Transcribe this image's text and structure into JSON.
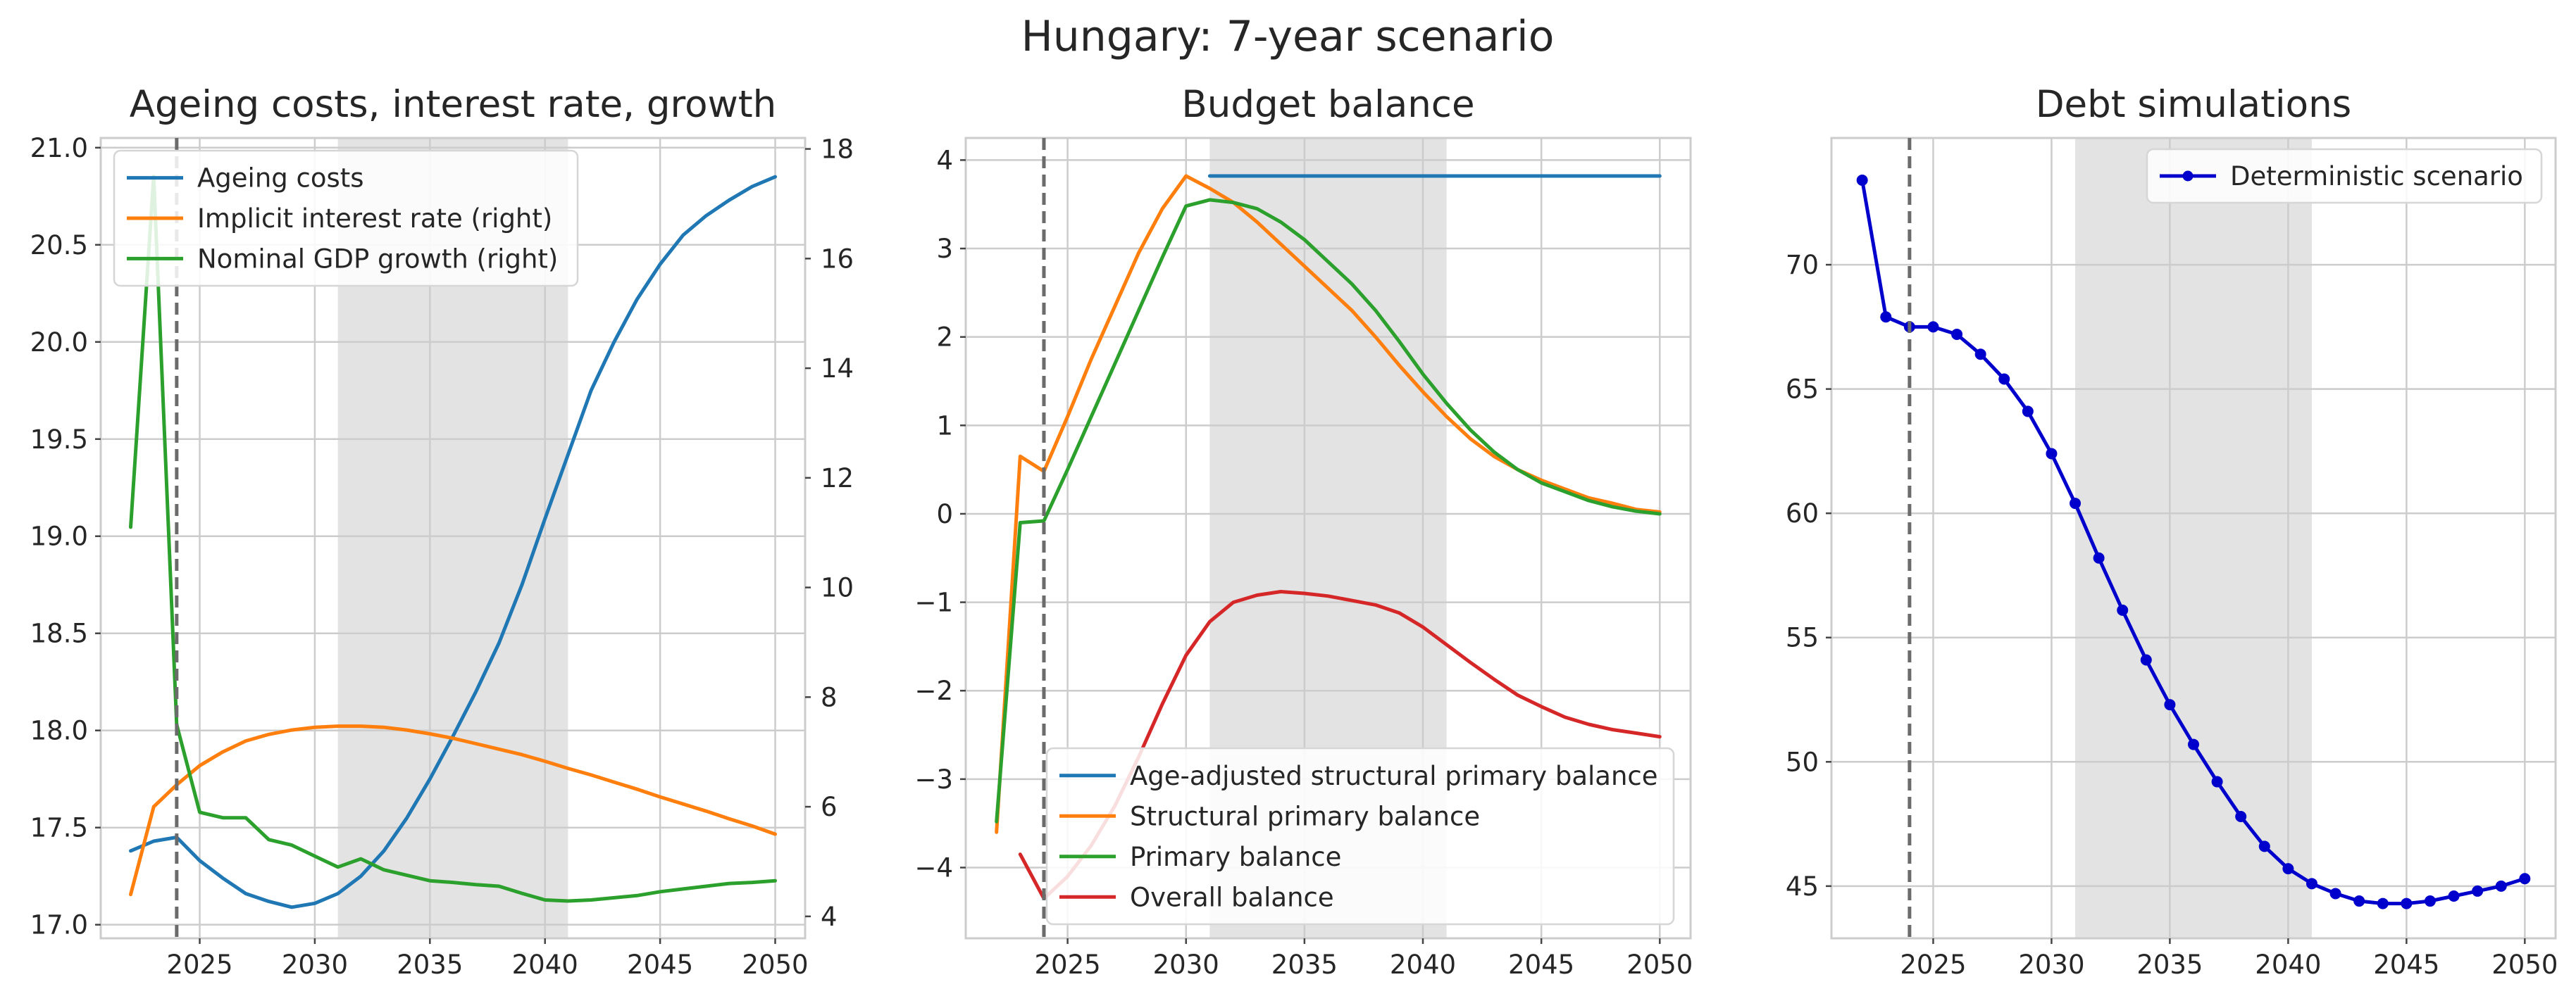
{
  "suptitle": "Hungary: 7-year scenario",
  "chart_data": [
    {
      "type": "line",
      "title": "Ageing costs, interest rate, growth",
      "xlim": [
        2020.7,
        2051.3
      ],
      "xticks": [
        2025,
        2030,
        2035,
        2040,
        2045,
        2050
      ],
      "ylim": [
        16.93,
        21.05
      ],
      "yticks": [
        17.0,
        17.5,
        18.0,
        18.5,
        19.0,
        19.5,
        20.0,
        20.5,
        21.0
      ],
      "ytick_labels": [
        "17.0",
        "17.5",
        "18.0",
        "18.5",
        "19.0",
        "19.5",
        "20.0",
        "20.5",
        "21.0"
      ],
      "y2lim": [
        3.6,
        18.2
      ],
      "y2ticks": [
        4,
        6,
        8,
        10,
        12,
        14,
        16,
        18
      ],
      "ytick2_labels": [
        "4",
        "6",
        "8",
        "10",
        "12",
        "14",
        "16",
        "18"
      ],
      "shaded_x": [
        2031,
        2041
      ],
      "vline_x": 2024,
      "legend_position": "upper left",
      "grid": true,
      "series": [
        {
          "name": "Ageing costs",
          "axis": "left",
          "color": "#1f77b4",
          "x": [
            2022,
            2023,
            2024,
            2025,
            2026,
            2027,
            2028,
            2029,
            2030,
            2031,
            2032,
            2033,
            2034,
            2035,
            2036,
            2037,
            2038,
            2039,
            2040,
            2041,
            2042,
            2043,
            2044,
            2045,
            2046,
            2047,
            2048,
            2049,
            2050
          ],
          "values": [
            17.38,
            17.43,
            17.45,
            17.33,
            17.24,
            17.16,
            17.12,
            17.09,
            17.11,
            17.16,
            17.25,
            17.38,
            17.55,
            17.75,
            17.97,
            18.2,
            18.45,
            18.75,
            19.09,
            19.42,
            19.75,
            20.0,
            20.22,
            20.4,
            20.55,
            20.65,
            20.73,
            20.8,
            20.85
          ]
        },
        {
          "name": "Implicit interest rate (right)",
          "axis": "right",
          "color": "#ff7f0e",
          "x": [
            2022,
            2023,
            2024,
            2025,
            2026,
            2027,
            2028,
            2029,
            2030,
            2031,
            2032,
            2033,
            2034,
            2035,
            2036,
            2037,
            2038,
            2039,
            2040,
            2041,
            2042,
            2043,
            2044,
            2045,
            2046,
            2047,
            2048,
            2049,
            2050
          ],
          "values": [
            4.4,
            6.0,
            6.4,
            6.75,
            7.0,
            7.2,
            7.32,
            7.4,
            7.45,
            7.47,
            7.47,
            7.45,
            7.4,
            7.33,
            7.25,
            7.15,
            7.05,
            6.95,
            6.83,
            6.7,
            6.58,
            6.45,
            6.32,
            6.18,
            6.05,
            5.92,
            5.78,
            5.65,
            5.5
          ]
        },
        {
          "name": "Nominal GDP growth (right)",
          "axis": "right",
          "color": "#2ca02c",
          "x": [
            2022,
            2023,
            2024,
            2025,
            2026,
            2027,
            2028,
            2029,
            2030,
            2031,
            2032,
            2033,
            2034,
            2035,
            2036,
            2037,
            2038,
            2039,
            2040,
            2041,
            2042,
            2043,
            2044,
            2045,
            2046,
            2047,
            2048,
            2049,
            2050
          ],
          "values": [
            11.1,
            17.5,
            7.5,
            5.9,
            5.8,
            5.8,
            5.4,
            5.3,
            5.1,
            4.9,
            5.05,
            4.85,
            4.75,
            4.65,
            4.62,
            4.58,
            4.55,
            4.42,
            4.3,
            4.28,
            4.3,
            4.34,
            4.38,
            4.45,
            4.5,
            4.55,
            4.6,
            4.62,
            4.65
          ]
        }
      ]
    },
    {
      "type": "line",
      "title": "Budget balance",
      "xlim": [
        2020.7,
        2051.3
      ],
      "xticks": [
        2025,
        2030,
        2035,
        2040,
        2045,
        2050
      ],
      "ylim": [
        -4.8,
        4.25
      ],
      "yticks": [
        -4,
        -3,
        -2,
        -1,
        0,
        1,
        2,
        3,
        4
      ],
      "ytick_labels": [
        "−4",
        "−3",
        "−2",
        "−1",
        "0",
        "1",
        "2",
        "3",
        "4"
      ],
      "shaded_x": [
        2031,
        2041
      ],
      "vline_x": 2024,
      "legend_position": "lower right",
      "grid": true,
      "series": [
        {
          "name": "Age-adjusted structural primary balance",
          "color": "#1f77b4",
          "x": [
            2031,
            2032,
            2033,
            2034,
            2035,
            2036,
            2037,
            2038,
            2039,
            2040,
            2041,
            2042,
            2043,
            2044,
            2045,
            2046,
            2047,
            2048,
            2049,
            2050
          ],
          "values": [
            3.82,
            3.82,
            3.82,
            3.82,
            3.82,
            3.82,
            3.82,
            3.82,
            3.82,
            3.82,
            3.82,
            3.82,
            3.82,
            3.82,
            3.82,
            3.82,
            3.82,
            3.82,
            3.82,
            3.82
          ]
        },
        {
          "name": "Structural primary balance",
          "color": "#ff7f0e",
          "x": [
            2022,
            2023,
            2024,
            2025,
            2026,
            2027,
            2028,
            2029,
            2030,
            2031,
            2032,
            2033,
            2034,
            2035,
            2036,
            2037,
            2038,
            2039,
            2040,
            2041,
            2042,
            2043,
            2044,
            2045,
            2046,
            2047,
            2048,
            2049,
            2050
          ],
          "values": [
            -3.6,
            0.65,
            0.48,
            1.1,
            1.75,
            2.35,
            2.95,
            3.45,
            3.82,
            3.68,
            3.52,
            3.3,
            3.05,
            2.8,
            2.55,
            2.3,
            2.0,
            1.68,
            1.38,
            1.1,
            0.85,
            0.65,
            0.5,
            0.38,
            0.28,
            0.18,
            0.12,
            0.05,
            0.02
          ]
        },
        {
          "name": "Primary balance",
          "color": "#2ca02c",
          "x": [
            2022,
            2023,
            2024,
            2025,
            2026,
            2027,
            2028,
            2029,
            2030,
            2031,
            2032,
            2033,
            2034,
            2035,
            2036,
            2037,
            2038,
            2039,
            2040,
            2041,
            2042,
            2043,
            2044,
            2045,
            2046,
            2047,
            2048,
            2049,
            2050
          ],
          "values": [
            -3.48,
            -0.1,
            -0.08,
            0.5,
            1.1,
            1.7,
            2.3,
            2.9,
            3.48,
            3.55,
            3.52,
            3.45,
            3.3,
            3.1,
            2.85,
            2.6,
            2.3,
            1.95,
            1.58,
            1.25,
            0.95,
            0.7,
            0.5,
            0.35,
            0.25,
            0.15,
            0.08,
            0.03,
            0.0
          ]
        },
        {
          "name": "Overall balance",
          "color": "#d62728",
          "x": [
            2023,
            2024,
            2025,
            2026,
            2027,
            2028,
            2029,
            2030,
            2031,
            2032,
            2033,
            2034,
            2035,
            2036,
            2037,
            2038,
            2039,
            2040,
            2041,
            2042,
            2043,
            2044,
            2045,
            2046,
            2047,
            2048,
            2049,
            2050
          ],
          "values": [
            -3.85,
            -4.35,
            -4.1,
            -3.75,
            -3.3,
            -2.75,
            -2.15,
            -1.6,
            -1.22,
            -1.0,
            -0.92,
            -0.88,
            -0.9,
            -0.93,
            -0.98,
            -1.03,
            -1.12,
            -1.28,
            -1.48,
            -1.68,
            -1.87,
            -2.05,
            -2.18,
            -2.3,
            -2.38,
            -2.44,
            -2.48,
            -2.52
          ]
        }
      ]
    },
    {
      "type": "line",
      "title": "Debt simulations",
      "xlim": [
        2020.7,
        2051.3
      ],
      "xticks": [
        2025,
        2030,
        2035,
        2040,
        2045,
        2050
      ],
      "ylim": [
        42.9,
        75.1
      ],
      "yticks": [
        45,
        50,
        55,
        60,
        65,
        70
      ],
      "ytick_labels": [
        "45",
        "50",
        "55",
        "60",
        "65",
        "70"
      ],
      "shaded_x": [
        2031,
        2041
      ],
      "vline_x": 2024,
      "legend_position": "upper right",
      "grid": true,
      "series": [
        {
          "name": "Deterministic scenario",
          "color": "#0000cc",
          "markers": true,
          "x": [
            2022,
            2023,
            2024,
            2025,
            2026,
            2027,
            2028,
            2029,
            2030,
            2031,
            2032,
            2033,
            2034,
            2035,
            2036,
            2037,
            2038,
            2039,
            2040,
            2041,
            2042,
            2043,
            2044,
            2045,
            2046,
            2047,
            2048,
            2049,
            2050
          ],
          "values": [
            73.4,
            67.9,
            67.5,
            67.5,
            67.2,
            66.4,
            65.4,
            64.1,
            62.4,
            60.4,
            58.2,
            56.1,
            54.1,
            52.3,
            50.7,
            49.2,
            47.8,
            46.6,
            45.7,
            45.1,
            44.7,
            44.4,
            44.3,
            44.3,
            44.4,
            44.6,
            44.8,
            45.0,
            45.3
          ]
        }
      ]
    }
  ]
}
